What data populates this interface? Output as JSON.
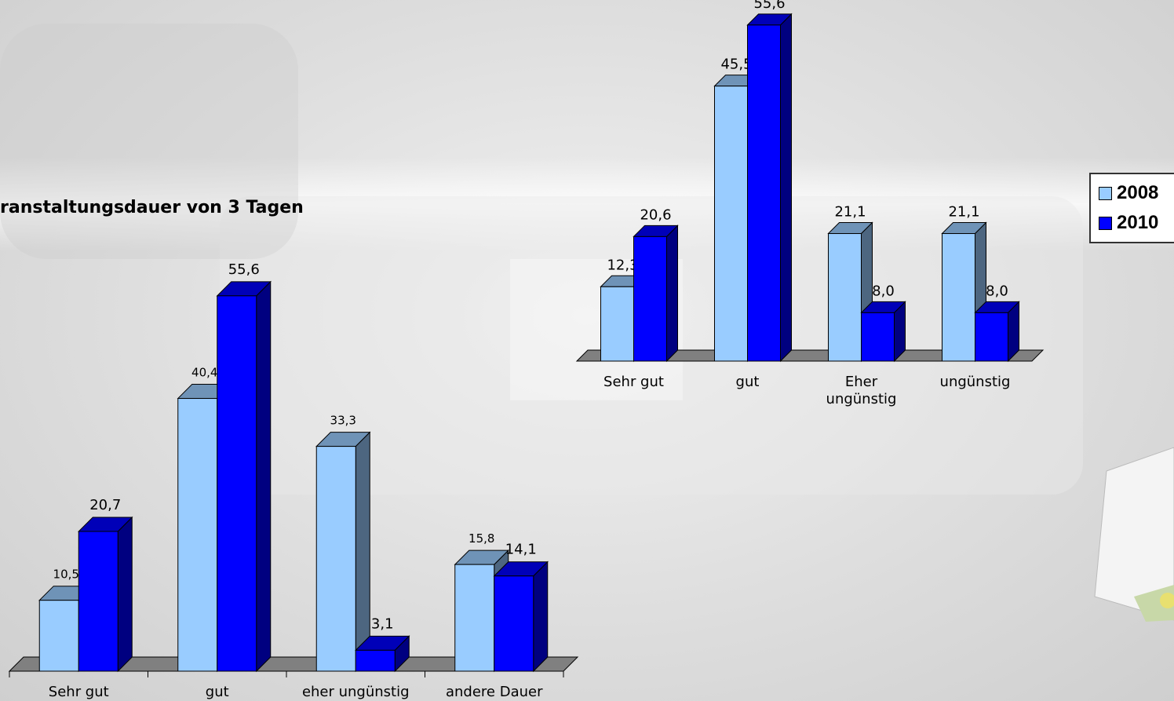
{
  "chart_data": [
    {
      "type": "bar",
      "title": "",
      "categories": [
        "Sehr gut",
        "gut",
        "Eher ungünstig",
        "ungünstig"
      ],
      "category_lines": [
        [
          "Sehr gut"
        ],
        [
          "gut"
        ],
        [
          "Eher",
          "ungünstig"
        ],
        [
          "ungünstig"
        ]
      ],
      "series": [
        {
          "name": "2008",
          "values": [
            12.3,
            45.5,
            21.1,
            21.1
          ],
          "labels": [
            "12,3",
            "45,5",
            "21,1",
            "21,1"
          ]
        },
        {
          "name": "2010",
          "values": [
            20.6,
            55.6,
            8.0,
            8.0
          ],
          "labels": [
            "20,6",
            "55,6",
            "8,0",
            "8,0"
          ]
        }
      ],
      "ylim": [
        0,
        60
      ],
      "legend": "right"
    },
    {
      "type": "bar",
      "title": "ranstaltungsdauer von 3 Tagen",
      "categories": [
        "Sehr gut",
        "gut",
        "eher ungünstig",
        "andere Dauer"
      ],
      "category_lines": [
        [
          "Sehr gut"
        ],
        [
          "gut"
        ],
        [
          "eher ungünstig"
        ],
        [
          "andere Dauer"
        ]
      ],
      "series": [
        {
          "name": "2008",
          "values": [
            10.5,
            40.4,
            33.3,
            15.8
          ],
          "labels": [
            "10,5",
            "40,4",
            "33,3",
            "15,8"
          ]
        },
        {
          "name": "2010",
          "values": [
            20.7,
            55.6,
            3.1,
            14.1
          ],
          "labels": [
            "20,7",
            "55,6",
            "3,1",
            "14,1"
          ]
        }
      ],
      "ylim": [
        0,
        60
      ]
    }
  ],
  "legend": {
    "items": [
      {
        "label": "2008",
        "color": "#99ccff"
      },
      {
        "label": "2010",
        "color": "#0000ff"
      }
    ]
  },
  "colors": {
    "light_front": "#99ccff",
    "light_side": "#4d6680",
    "light_top": "#6f93b7",
    "dark_front": "#0000ff",
    "dark_side": "#000080",
    "dark_top": "#0000b8",
    "floor": "#808080"
  }
}
